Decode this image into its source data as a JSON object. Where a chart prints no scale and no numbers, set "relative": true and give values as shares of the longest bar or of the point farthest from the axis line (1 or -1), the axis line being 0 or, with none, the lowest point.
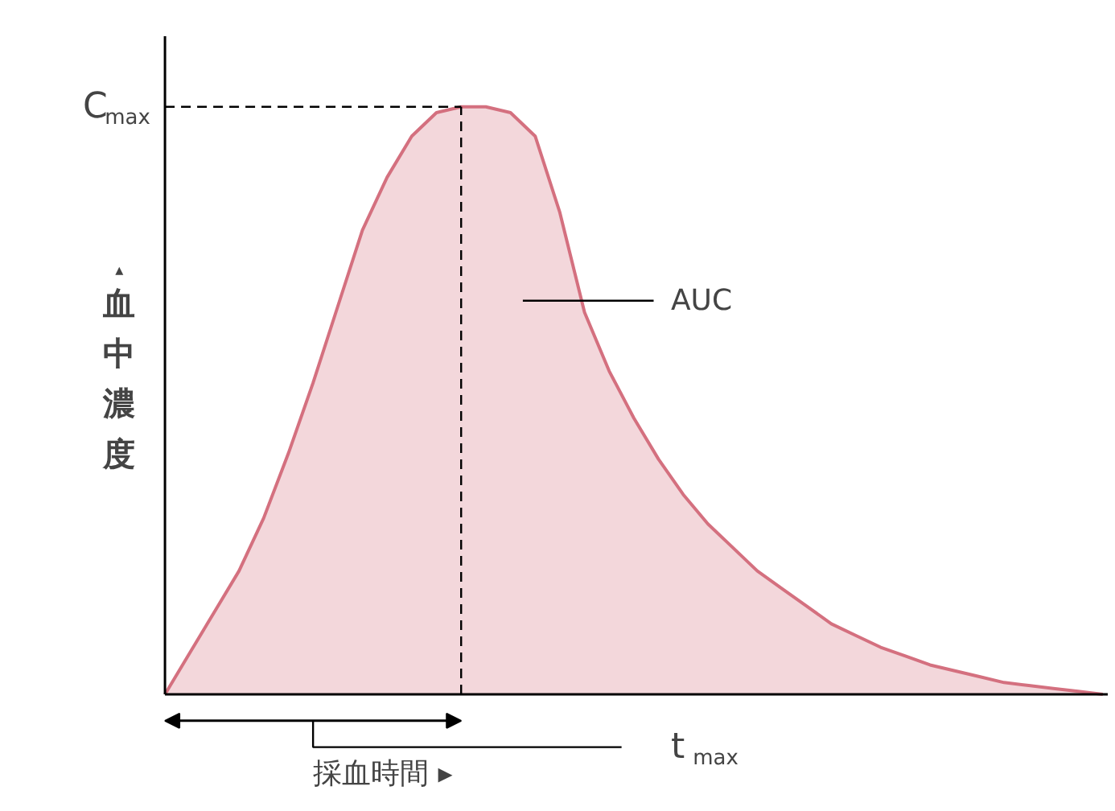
{
  "chart_data": {
    "type": "area",
    "relative": true,
    "color": "#d4707f",
    "xlabel": "採血時間 ▸",
    "ylabel": "▴血中濃度",
    "categories": [
      null,
      null,
      null,
      null,
      null,
      null,
      null,
      null,
      null,
      null,
      null,
      null,
      null,
      null,
      null,
      null,
      null,
      null,
      null,
      null,
      null,
      null,
      null,
      null,
      null,
      null,
      null,
      null,
      null,
      null,
      null,
      null,
      null,
      null,
      null,
      null,
      null,
      null,
      null
    ],
    "values": [
      0,
      0.07,
      0.14,
      0.21,
      0.3,
      0.41,
      0.53,
      0.66,
      0.79,
      0.88,
      0.95,
      0.99,
      1.0,
      1.0,
      0.99,
      0.95,
      0.82,
      0.65,
      0.55,
      0.47,
      0.4,
      0.34,
      0.29,
      0.25,
      0.21,
      0.18,
      0.15,
      0.12,
      0.1,
      0.08,
      0.065,
      0.05,
      0.04,
      0.03,
      0.02,
      0.015,
      0.01,
      0.005,
      0
    ],
    "ref_lines": [
      {
        "axis": "y",
        "value": 1,
        "label": "C$_{max}$",
        "line_style": "dashed"
      }
    ],
    "annotations": [
      "t$_{max}$",
      "AUC"
    ]
  }
}
